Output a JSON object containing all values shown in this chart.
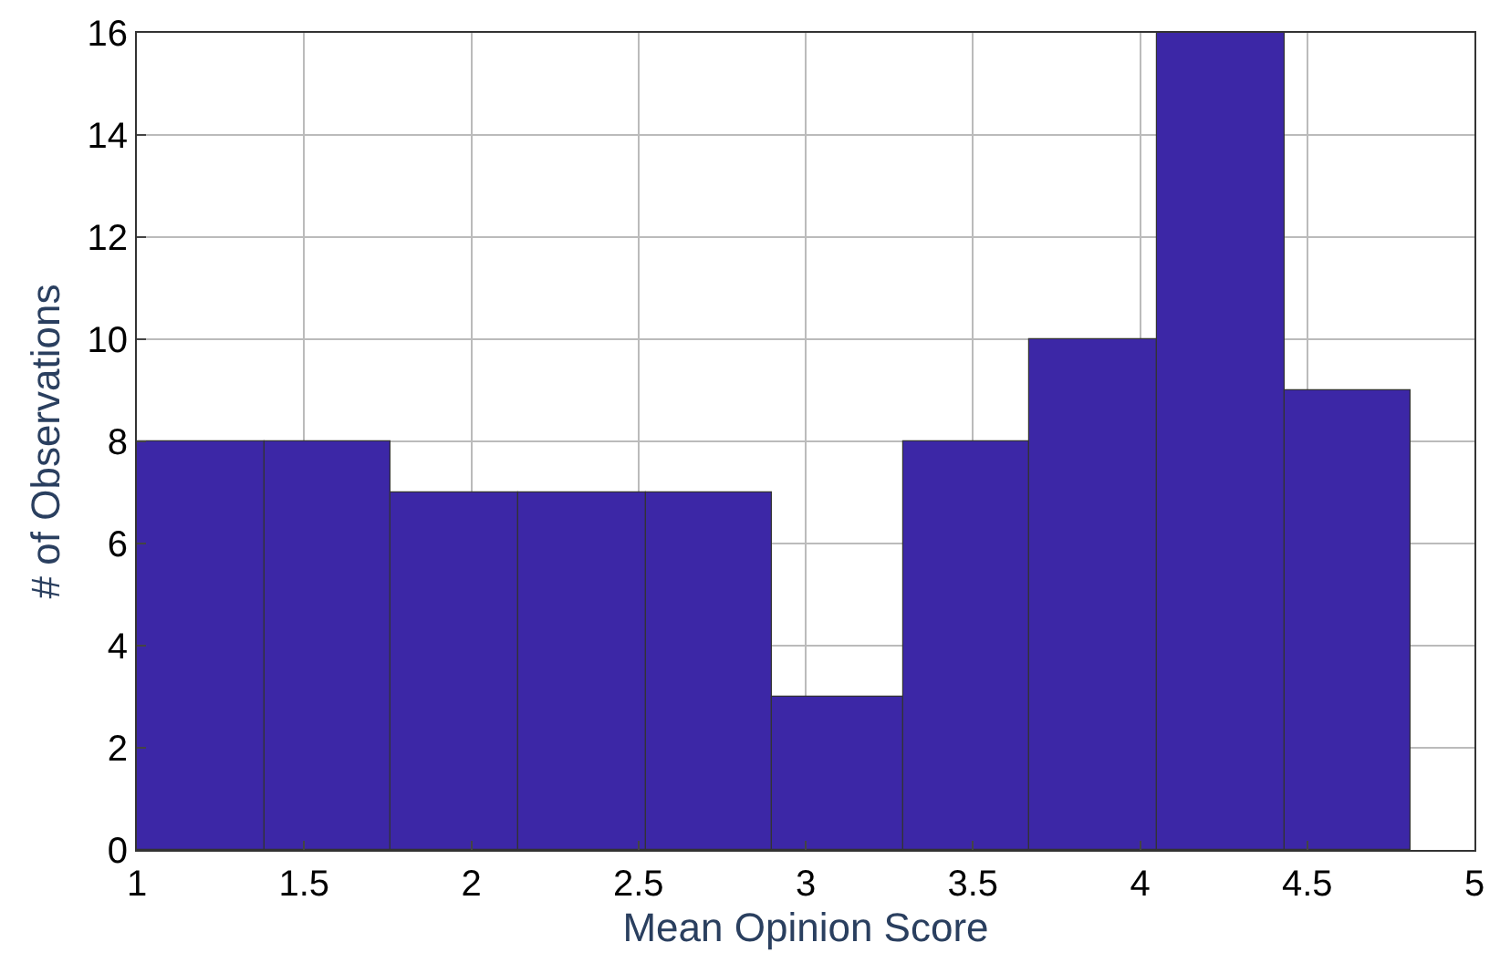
{
  "chart_data": {
    "type": "histogram",
    "xlabel": "Mean Opinion Score",
    "ylabel": "# of Observations",
    "bins": [
      1,
      1.38,
      1.76,
      2.14,
      2.52,
      2.9,
      3.29,
      3.67,
      4.05,
      4.43,
      4.81
    ],
    "values": [
      8,
      8,
      7,
      7,
      7,
      3,
      8,
      10,
      16,
      9
    ],
    "color": "#3c27a6",
    "xlim": [
      1,
      5
    ],
    "xticks": [
      1,
      1.5,
      2,
      2.5,
      3,
      3.5,
      4,
      4.5,
      5
    ],
    "ylim": [
      0,
      16
    ],
    "yticks": [
      0,
      2,
      4,
      6,
      8,
      10,
      12,
      14,
      16
    ],
    "grid": true
  }
}
